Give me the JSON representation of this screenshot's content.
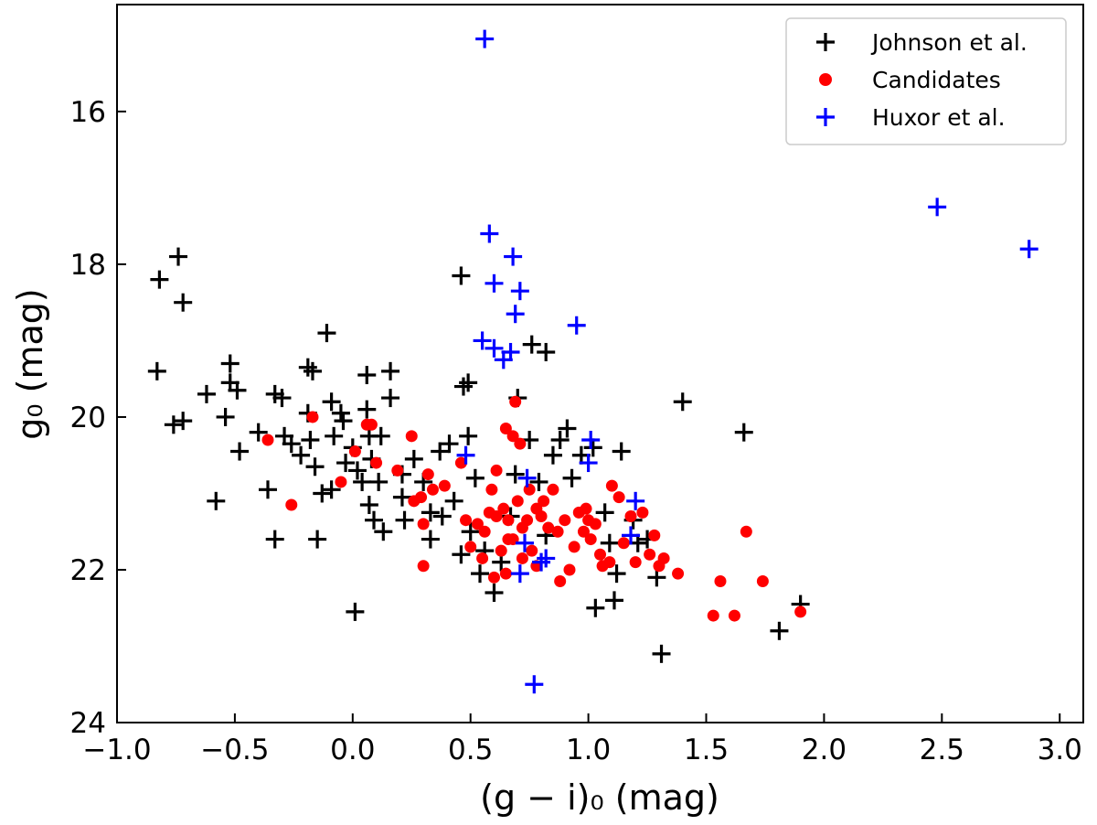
{
  "chart_data": {
    "type": "scatter",
    "title": "",
    "xlabel": "(g − i)₀ (mag)",
    "ylabel": "g₀ (mag)",
    "xlim": [
      -1.0,
      3.1
    ],
    "ylim": [
      24.0,
      14.6
    ],
    "y_inverted": true,
    "x_ticks": [
      -1.0,
      -0.5,
      0.0,
      0.5,
      1.0,
      1.5,
      2.0,
      2.5,
      3.0
    ],
    "x_tick_labels": [
      "−1.0",
      "−0.5",
      "0.0",
      "0.5",
      "1.0",
      "1.5",
      "2.0",
      "2.5",
      "3.0"
    ],
    "y_ticks": [
      16,
      18,
      20,
      22,
      24
    ],
    "y_tick_labels": [
      "16",
      "18",
      "20",
      "22",
      "24"
    ],
    "grid": false,
    "legend_position": "top-right",
    "series": [
      {
        "name": "Johnson et al.",
        "marker": "plus",
        "color": "#000000",
        "points": [
          [
            -0.82,
            18.2
          ],
          [
            -0.74,
            17.9
          ],
          [
            -0.72,
            18.5
          ],
          [
            -0.83,
            19.4
          ],
          [
            -0.76,
            20.1
          ],
          [
            -0.72,
            20.05
          ],
          [
            -0.62,
            19.7
          ],
          [
            -0.52,
            19.3
          ],
          [
            -0.52,
            19.55
          ],
          [
            -0.49,
            19.65
          ],
          [
            -0.54,
            20.0
          ],
          [
            -0.48,
            20.45
          ],
          [
            -0.58,
            21.1
          ],
          [
            -0.4,
            20.2
          ],
          [
            -0.36,
            20.95
          ],
          [
            -0.33,
            21.6
          ],
          [
            -0.33,
            19.7
          ],
          [
            -0.3,
            19.75
          ],
          [
            -0.29,
            20.25
          ],
          [
            -0.26,
            20.35
          ],
          [
            -0.22,
            20.5
          ],
          [
            -0.15,
            21.6
          ],
          [
            -0.19,
            19.35
          ],
          [
            -0.17,
            19.4
          ],
          [
            -0.18,
            20.3
          ],
          [
            -0.16,
            20.65
          ],
          [
            -0.19,
            19.95
          ],
          [
            -0.11,
            18.9
          ],
          [
            -0.09,
            19.8
          ],
          [
            -0.08,
            20.25
          ],
          [
            -0.05,
            19.95
          ],
          [
            -0.04,
            20.05
          ],
          [
            -0.13,
            21.0
          ],
          [
            -0.09,
            20.95
          ],
          [
            -0.03,
            20.6
          ],
          [
            0.02,
            20.7
          ],
          [
            0.04,
            20.85
          ],
          [
            0.0,
            20.4
          ],
          [
            0.06,
            19.45
          ],
          [
            0.06,
            19.9
          ],
          [
            0.07,
            20.25
          ],
          [
            0.08,
            20.55
          ],
          [
            0.07,
            21.15
          ],
          [
            0.09,
            21.35
          ],
          [
            0.12,
            20.25
          ],
          [
            0.11,
            20.85
          ],
          [
            0.13,
            21.5
          ],
          [
            0.16,
            19.4
          ],
          [
            0.16,
            19.75
          ],
          [
            0.01,
            22.55
          ],
          [
            0.21,
            20.75
          ],
          [
            0.21,
            21.05
          ],
          [
            0.22,
            21.35
          ],
          [
            0.26,
            20.55
          ],
          [
            0.3,
            20.85
          ],
          [
            0.33,
            21.25
          ],
          [
            0.33,
            21.6
          ],
          [
            0.38,
            21.3
          ],
          [
            0.37,
            20.45
          ],
          [
            0.41,
            20.35
          ],
          [
            0.43,
            21.1
          ],
          [
            0.46,
            18.15
          ],
          [
            0.47,
            19.6
          ],
          [
            0.49,
            19.55
          ],
          [
            0.49,
            20.25
          ],
          [
            0.52,
            20.8
          ],
          [
            0.5,
            21.5
          ],
          [
            0.46,
            21.8
          ],
          [
            0.54,
            22.05
          ],
          [
            0.56,
            21.75
          ],
          [
            0.6,
            22.3
          ],
          [
            0.63,
            21.9
          ],
          [
            0.67,
            21.3
          ],
          [
            0.69,
            20.75
          ],
          [
            0.7,
            19.75
          ],
          [
            0.75,
            20.3
          ],
          [
            0.76,
            19.05
          ],
          [
            0.79,
            20.85
          ],
          [
            0.82,
            19.15
          ],
          [
            0.82,
            21.55
          ],
          [
            0.85,
            20.5
          ],
          [
            0.88,
            20.3
          ],
          [
            0.91,
            20.15
          ],
          [
            0.93,
            20.8
          ],
          [
            0.97,
            20.5
          ],
          [
            1.02,
            20.4
          ],
          [
            1.07,
            21.25
          ],
          [
            1.09,
            21.65
          ],
          [
            1.14,
            20.45
          ],
          [
            1.12,
            22.05
          ],
          [
            1.03,
            22.5
          ],
          [
            1.11,
            22.4
          ],
          [
            1.19,
            21.35
          ],
          [
            1.21,
            21.65
          ],
          [
            1.25,
            21.6
          ],
          [
            1.29,
            22.1
          ],
          [
            1.31,
            23.1
          ],
          [
            1.4,
            19.8
          ],
          [
            1.66,
            20.2
          ],
          [
            1.81,
            22.8
          ],
          [
            1.9,
            22.45
          ]
        ]
      },
      {
        "name": "Candidates",
        "marker": "circle",
        "color": "#ff0000",
        "points": [
          [
            -0.36,
            20.3
          ],
          [
            -0.26,
            21.15
          ],
          [
            -0.17,
            20.0
          ],
          [
            -0.05,
            20.85
          ],
          [
            0.01,
            20.45
          ],
          [
            0.06,
            20.1
          ],
          [
            0.08,
            20.1
          ],
          [
            0.1,
            20.6
          ],
          [
            0.19,
            20.7
          ],
          [
            0.25,
            20.25
          ],
          [
            0.26,
            21.1
          ],
          [
            0.29,
            21.05
          ],
          [
            0.3,
            21.4
          ],
          [
            0.32,
            20.75
          ],
          [
            0.34,
            20.95
          ],
          [
            0.3,
            21.95
          ],
          [
            0.39,
            20.9
          ],
          [
            0.46,
            20.6
          ],
          [
            0.48,
            21.35
          ],
          [
            0.5,
            21.7
          ],
          [
            0.53,
            21.4
          ],
          [
            0.56,
            21.5
          ],
          [
            0.58,
            21.25
          ],
          [
            0.61,
            21.3
          ],
          [
            0.59,
            20.95
          ],
          [
            0.61,
            20.7
          ],
          [
            0.63,
            21.75
          ],
          [
            0.64,
            21.2
          ],
          [
            0.66,
            21.6
          ],
          [
            0.66,
            21.35
          ],
          [
            0.65,
            20.15
          ],
          [
            0.68,
            20.25
          ],
          [
            0.69,
            19.8
          ],
          [
            0.71,
            20.35
          ],
          [
            0.7,
            21.1
          ],
          [
            0.72,
            21.45
          ],
          [
            0.74,
            21.35
          ],
          [
            0.75,
            20.95
          ],
          [
            0.76,
            21.75
          ],
          [
            0.78,
            21.2
          ],
          [
            0.8,
            21.3
          ],
          [
            0.81,
            21.1
          ],
          [
            0.83,
            21.45
          ],
          [
            0.85,
            20.95
          ],
          [
            0.87,
            21.5
          ],
          [
            0.88,
            22.15
          ],
          [
            0.9,
            21.35
          ],
          [
            0.92,
            22.0
          ],
          [
            0.94,
            21.7
          ],
          [
            0.96,
            21.25
          ],
          [
            0.98,
            21.5
          ],
          [
            0.99,
            21.2
          ],
          [
            1.0,
            21.35
          ],
          [
            1.01,
            21.6
          ],
          [
            1.03,
            21.4
          ],
          [
            1.05,
            21.8
          ],
          [
            1.06,
            21.95
          ],
          [
            1.09,
            21.9
          ],
          [
            1.1,
            20.9
          ],
          [
            1.13,
            21.05
          ],
          [
            1.15,
            21.65
          ],
          [
            1.18,
            21.3
          ],
          [
            1.2,
            21.9
          ],
          [
            1.23,
            21.25
          ],
          [
            1.26,
            21.8
          ],
          [
            1.28,
            21.55
          ],
          [
            1.3,
            21.95
          ],
          [
            1.32,
            21.85
          ],
          [
            1.38,
            22.05
          ],
          [
            1.53,
            22.6
          ],
          [
            1.56,
            22.15
          ],
          [
            1.62,
            22.6
          ],
          [
            1.67,
            21.5
          ],
          [
            1.74,
            22.15
          ],
          [
            1.9,
            22.55
          ],
          [
            0.6,
            22.1
          ],
          [
            0.65,
            22.05
          ],
          [
            0.72,
            21.85
          ],
          [
            0.78,
            21.95
          ],
          [
            0.55,
            21.85
          ],
          [
            0.68,
            21.6
          ]
        ]
      },
      {
        "name": "Huxor et al.",
        "marker": "plus",
        "color": "#0000ff",
        "points": [
          [
            0.56,
            15.05
          ],
          [
            0.58,
            17.6
          ],
          [
            0.6,
            18.25
          ],
          [
            0.68,
            17.9
          ],
          [
            0.71,
            18.35
          ],
          [
            0.69,
            18.65
          ],
          [
            0.55,
            19.0
          ],
          [
            0.6,
            19.1
          ],
          [
            0.64,
            19.25
          ],
          [
            0.67,
            19.15
          ],
          [
            0.95,
            18.8
          ],
          [
            2.48,
            17.25
          ],
          [
            2.87,
            17.8
          ],
          [
            0.48,
            20.5
          ],
          [
            0.74,
            20.8
          ],
          [
            1.01,
            20.3
          ],
          [
            1.0,
            20.6
          ],
          [
            1.2,
            21.1
          ],
          [
            1.18,
            21.55
          ],
          [
            0.73,
            21.65
          ],
          [
            0.71,
            22.05
          ],
          [
            0.8,
            21.9
          ],
          [
            0.82,
            21.85
          ],
          [
            0.77,
            23.5
          ]
        ]
      }
    ]
  }
}
